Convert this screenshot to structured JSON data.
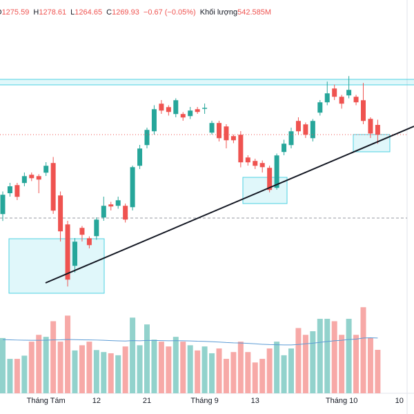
{
  "chart_data": {
    "type": "candlestick",
    "header": {
      "open_label": "O",
      "high_label": "H",
      "low_label": "L",
      "close_label": "C",
      "change": {
        "value": -0.67,
        "label": "−0.67"
      },
      "change_pct": {
        "value": -0.05,
        "label": "(−0.05%)"
      },
      "volume_label": "Khối lượng",
      "volume_text": "542.585M"
    },
    "categories": [
      null,
      null,
      null,
      null,
      null,
      null,
      "Tháng Tám",
      null,
      null,
      null,
      null,
      null,
      null,
      "12",
      null,
      null,
      null,
      null,
      null,
      null,
      "21",
      null,
      null,
      null,
      null,
      null,
      null,
      null,
      "Tháng 9",
      null,
      null,
      null,
      null,
      null,
      null,
      "13",
      null,
      null,
      null,
      null,
      null,
      null,
      null,
      null,
      null,
      null,
      null,
      "Tháng 10",
      null,
      null,
      null,
      null,
      null,
      null,
      null,
      "10",
      null
    ],
    "open": [
      1223.9,
      1236,
      1240.7,
      1241.9,
      1246.7,
      1245.9,
      1247.9,
      1253.5,
      1234.7,
      1217.9,
      1193.9,
      1215.9,
      1209.9,
      1211.1,
      1221.9,
      1229.5,
      1228.7,
      1228.7,
      1227.9,
      1251.9,
      1263.9,
      1271.9,
      1287.9,
      1285.9,
      1281.9,
      1281.9,
      1280.7,
      1284.7,
      1284.9,
      1271.1,
      1276.7,
      1274.7,
      1269.1,
      1269.9,
      1256.7,
      1254.7,
      1253.5,
      1250.7,
      1239.1,
      1259.9,
      1263.9,
      1277.9,
      1275.9,
      1267.9,
      1282.7,
      1288.7,
      1296.7,
      1291.9,
      1292.7,
      1291.9,
      1289.9,
      1279.1,
      1275.59,
      null,
      null,
      null,
      null
    ],
    "high": [
      1237,
      1242,
      1242,
      1248,
      1248,
      1247,
      1254,
      1257,
      1237,
      1220,
      1210,
      1217,
      1211,
      1222,
      1234,
      1231,
      1234,
      1230,
      1252,
      1264,
      1274,
      1287,
      1290,
      1287,
      1291,
      1283,
      1286,
      1286,
      1288,
      1278,
      1278,
      1276,
      1270,
      1272,
      1258,
      1256,
      1255,
      1252,
      1259,
      1267,
      1274,
      1280,
      1277,
      1279,
      1290,
      1300.7,
      1299,
      1293,
      1303.9,
      1293,
      1299.9,
      1280,
      1278.61,
      null,
      null,
      null,
      null
    ],
    "low": [
      1219.9,
      1234,
      1232,
      1240,
      1243,
      1236,
      1246,
      1224,
      1208,
      1181.9,
      1190,
      1208,
      1204,
      1209,
      1220,
      1226,
      1227,
      1219,
      1226,
      1250,
      1262,
      1270,
      1282,
      1281,
      1280,
      1278,
      1279,
      1282,
      1282,
      1270,
      1266,
      1262,
      1265,
      1251,
      1252,
      1250,
      1248,
      1236.5,
      1238,
      1258,
      1262,
      1270,
      1268,
      1266,
      1281,
      1287,
      1290,
      1285,
      1291,
      1287,
      1276,
      1268,
      1264.65,
      null,
      null,
      null,
      null
    ],
    "close": [
      1235.1,
      1240,
      1233.9,
      1245.9,
      1244.7,
      1243.9,
      1251.9,
      1225.9,
      1213.9,
      1185.9,
      1207.9,
      1211.9,
      1205.9,
      1220.7,
      1228.7,
      1228.3,
      1231.9,
      1220.7,
      1251.1,
      1261.9,
      1272.7,
      1284.7,
      1283.9,
      1283.1,
      1289.9,
      1279.9,
      1283.9,
      1283.1,
      1285.5,
      1276.7,
      1267.9,
      1266.7,
      1266.7,
      1253.9,
      1253.9,
      1251.9,
      1251.1,
      1237.9,
      1257.9,
      1264.7,
      1271.9,
      1271.9,
      1269.9,
      1277.9,
      1288.7,
      1293.9,
      1291.9,
      1287.9,
      1295.9,
      1288.7,
      1277.9,
      1270.6,
      1269.93,
      null,
      null,
      null,
      null
    ],
    "volume": [
      690,
      430,
      430,
      470,
      645,
      730,
      705,
      900,
      645,
      970,
      535,
      600,
      645,
      540,
      515,
      500,
      475,
      585,
      945,
      600,
      860,
      670,
      645,
      585,
      705,
      645,
      600,
      535,
      585,
      500,
      560,
      430,
      515,
      645,
      515,
      385,
      430,
      560,
      645,
      475,
      560,
      815,
      730,
      775,
      930,
      930,
      900,
      730,
      930,
      730,
      1075,
      690,
      542.585,
      null,
      null,
      null,
      null
    ],
    "volume_ma": [
      670,
      668,
      665,
      663,
      662,
      662,
      663,
      667,
      668,
      672,
      670,
      668,
      667,
      665,
      662,
      658,
      655,
      653,
      658,
      656,
      660,
      660,
      658,
      656,
      657,
      656,
      654,
      650,
      648,
      644,
      640,
      634,
      630,
      628,
      624,
      618,
      612,
      608,
      606,
      604,
      604,
      610,
      618,
      626,
      636,
      646,
      656,
      662,
      672,
      676,
      690,
      694,
      690,
      null,
      null,
      null,
      null
    ],
    "up_color": "#26a69a",
    "down_color": "#ef5350",
    "volume_up_color": "#92d2cc",
    "volume_down_color": "#f7a9a7",
    "volume_ma_color": "#5b9bd5",
    "ylim": [
      1174,
      1348
    ],
    "volume_lim": [
      0,
      1120
    ]
  }
}
